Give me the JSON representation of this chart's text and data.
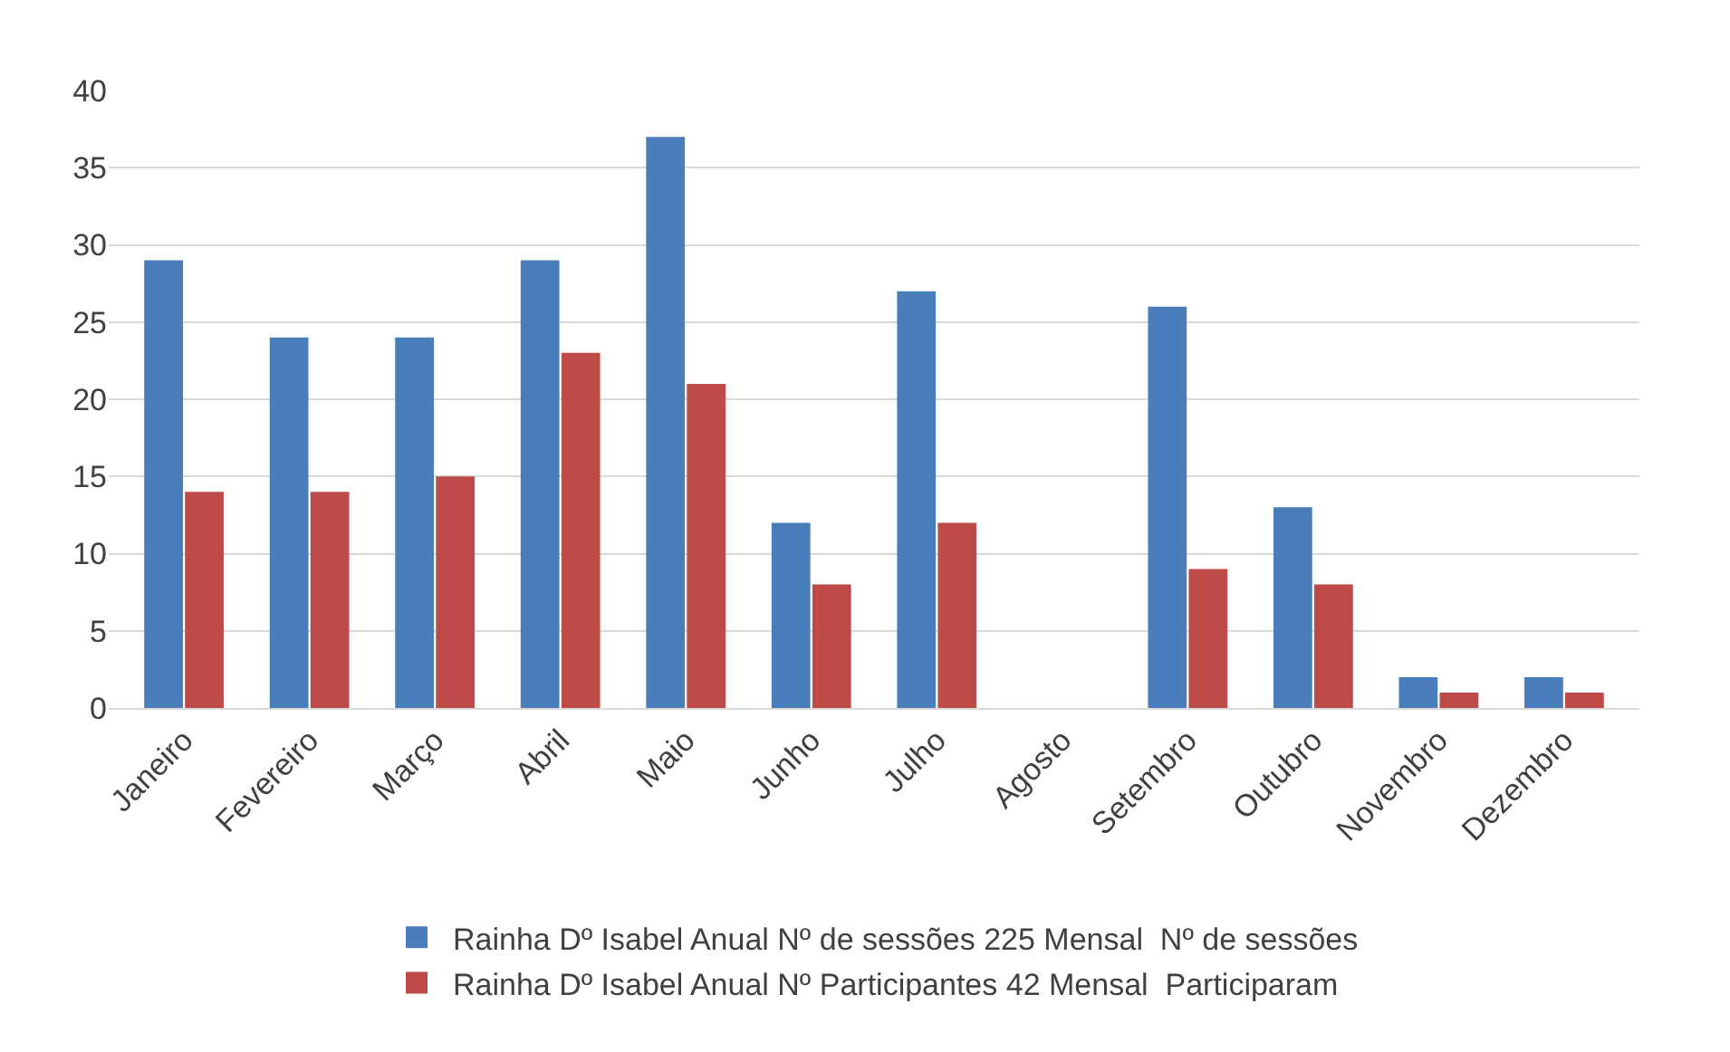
{
  "chart_data": {
    "type": "bar",
    "categories": [
      "Janeiro",
      "Fevereiro",
      "Março",
      "Abril",
      "Maio",
      "Junho",
      "Julho",
      "Agosto",
      "Setembro",
      "Outubro",
      "Novembro",
      "Dezembro"
    ],
    "series": [
      {
        "name": "Rainha Dº Isabel Anual Nº de sessões 225 Mensal  Nº de sessões",
        "color": "#4a7ebb",
        "values": [
          29,
          24,
          24,
          29,
          37,
          12,
          27,
          0,
          26,
          13,
          2,
          2
        ]
      },
      {
        "name": "Rainha Dº Isabel Anual Nº Participantes 42 Mensal  Participaram",
        "color": "#be4b48",
        "values": [
          14,
          14,
          15,
          23,
          21,
          8,
          12,
          0,
          9,
          8,
          1,
          1
        ]
      }
    ],
    "ylim": [
      0,
      40
    ],
    "yticks": [
      0,
      5,
      10,
      15,
      20,
      25,
      30,
      35,
      40
    ],
    "grid": "y",
    "legend": "bottom"
  }
}
